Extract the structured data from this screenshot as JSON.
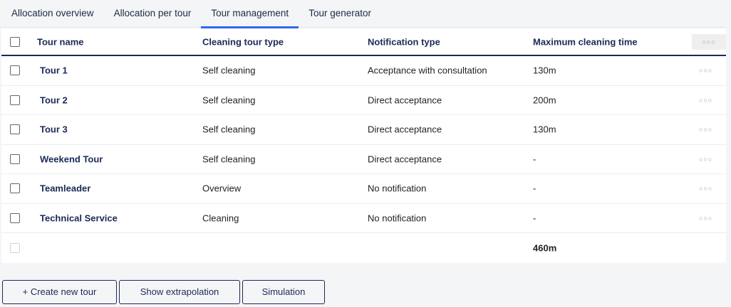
{
  "tabs": [
    {
      "label": "Allocation overview"
    },
    {
      "label": "Allocation per tour"
    },
    {
      "label": "Tour management",
      "active": true
    },
    {
      "label": "Tour generator"
    }
  ],
  "table": {
    "headers": {
      "name": "Tour name",
      "type": "Cleaning tour type",
      "notification": "Notification type",
      "max_time": "Maximum cleaning time",
      "more": "○○○"
    },
    "rows": [
      {
        "name": "Tour 1",
        "type": "Self cleaning",
        "notification": "Acceptance with consultation",
        "max_time": "130m"
      },
      {
        "name": "Tour 2",
        "type": "Self cleaning",
        "notification": "Direct acceptance",
        "max_time": "200m"
      },
      {
        "name": "Tour 3",
        "type": "Self cleaning",
        "notification": "Direct acceptance",
        "max_time": "130m"
      },
      {
        "name": "Weekend Tour",
        "type": "Self cleaning",
        "notification": "Direct acceptance",
        "max_time": "-"
      },
      {
        "name": "Teamleader",
        "type": "Overview",
        "notification": "No notification",
        "max_time": "-"
      },
      {
        "name": "Technical Service",
        "type": "Cleaning",
        "notification": "No notification",
        "max_time": "-"
      }
    ],
    "row_more": "○○○",
    "footer": {
      "total": "460m"
    }
  },
  "buttons": {
    "create": "+ Create new tour",
    "extrapolation": "Show extrapolation",
    "simulation": "Simulation"
  },
  "colors": {
    "accent": "#2d6ae8",
    "primary": "#1b2a55"
  }
}
